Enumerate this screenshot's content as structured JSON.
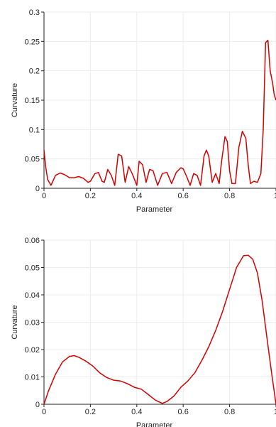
{
  "chart_data": [
    {
      "type": "line",
      "xlabel": "Parameter",
      "ylabel": "Curvature",
      "xlim": [
        0,
        1
      ],
      "ylim": [
        0,
        0.3
      ],
      "xticks": [
        0,
        0.2,
        0.4,
        0.6,
        0.8,
        1
      ],
      "xtick_labels": [
        "0",
        "0.2",
        "0.4",
        "0.6",
        "0.8",
        "1"
      ],
      "yticks": [
        0,
        0.05,
        0.1,
        0.15,
        0.2,
        0.25,
        0.3
      ],
      "ytick_labels": [
        "0",
        "0.05",
        "0.1",
        "0.15",
        "0.2",
        "0.25",
        "0.3"
      ],
      "grid": true,
      "color": "#d40000",
      "x": [
        0,
        0.008,
        0.016,
        0.03,
        0.05,
        0.07,
        0.09,
        0.11,
        0.13,
        0.15,
        0.17,
        0.19,
        0.2,
        0.22,
        0.235,
        0.25,
        0.26,
        0.275,
        0.29,
        0.305,
        0.32,
        0.335,
        0.35,
        0.365,
        0.38,
        0.4,
        0.41,
        0.425,
        0.44,
        0.455,
        0.47,
        0.49,
        0.51,
        0.53,
        0.55,
        0.57,
        0.59,
        0.6,
        0.615,
        0.63,
        0.645,
        0.66,
        0.675,
        0.69,
        0.7,
        0.71,
        0.725,
        0.74,
        0.755,
        0.765,
        0.78,
        0.79,
        0.8,
        0.81,
        0.825,
        0.84,
        0.855,
        0.87,
        0.88,
        0.89,
        0.905,
        0.92,
        0.935,
        0.945,
        0.955,
        0.965,
        0.975,
        0.985,
        0.992,
        1.0
      ],
      "y": [
        0.065,
        0.035,
        0.015,
        0.005,
        0.022,
        0.026,
        0.023,
        0.018,
        0.018,
        0.02,
        0.017,
        0.01,
        0.012,
        0.025,
        0.027,
        0.012,
        0.01,
        0.032,
        0.022,
        0.005,
        0.058,
        0.055,
        0.01,
        0.037,
        0.025,
        0.005,
        0.046,
        0.04,
        0.01,
        0.032,
        0.03,
        0.005,
        0.025,
        0.027,
        0.008,
        0.027,
        0.035,
        0.033,
        0.02,
        0.005,
        0.025,
        0.022,
        0.005,
        0.055,
        0.065,
        0.055,
        0.01,
        0.025,
        0.008,
        0.045,
        0.088,
        0.08,
        0.03,
        0.008,
        0.008,
        0.07,
        0.097,
        0.085,
        0.04,
        0.008,
        0.012,
        0.01,
        0.025,
        0.1,
        0.248,
        0.252,
        0.2,
        0.18,
        0.16,
        0.15
      ]
    },
    {
      "type": "line",
      "xlabel": "Parameter",
      "ylabel": "Curvature",
      "xlim": [
        0,
        1
      ],
      "ylim": [
        0,
        0.06
      ],
      "xticks": [
        0,
        0.2,
        0.4,
        0.6,
        0.8,
        1
      ],
      "xtick_labels": [
        "0",
        "0.2",
        "0.4",
        "0.6",
        "0.8",
        "1"
      ],
      "yticks": [
        0,
        0.01,
        0.02,
        0.03,
        0.04,
        0.05,
        0.06
      ],
      "ytick_labels": [
        "0",
        "0.01",
        "0.02",
        "0.03",
        "0.04",
        "0.05",
        "0.06"
      ],
      "grid": true,
      "color": "#d40000",
      "x": [
        0,
        0.02,
        0.05,
        0.08,
        0.11,
        0.13,
        0.15,
        0.18,
        0.21,
        0.24,
        0.27,
        0.3,
        0.33,
        0.36,
        0.39,
        0.42,
        0.45,
        0.48,
        0.51,
        0.53,
        0.56,
        0.59,
        0.62,
        0.65,
        0.68,
        0.71,
        0.74,
        0.77,
        0.8,
        0.83,
        0.86,
        0.88,
        0.9,
        0.92,
        0.94,
        0.96,
        0.98,
        1.0
      ],
      "y": [
        0,
        0.005,
        0.011,
        0.0155,
        0.0175,
        0.0178,
        0.0172,
        0.0158,
        0.014,
        0.0115,
        0.0098,
        0.0088,
        0.0085,
        0.0075,
        0.0062,
        0.0055,
        0.0035,
        0.0015,
        0.0003,
        0.001,
        0.003,
        0.0062,
        0.0085,
        0.0115,
        0.016,
        0.021,
        0.027,
        0.034,
        0.042,
        0.05,
        0.0543,
        0.0545,
        0.053,
        0.048,
        0.038,
        0.025,
        0.012,
        0.0
      ]
    }
  ]
}
